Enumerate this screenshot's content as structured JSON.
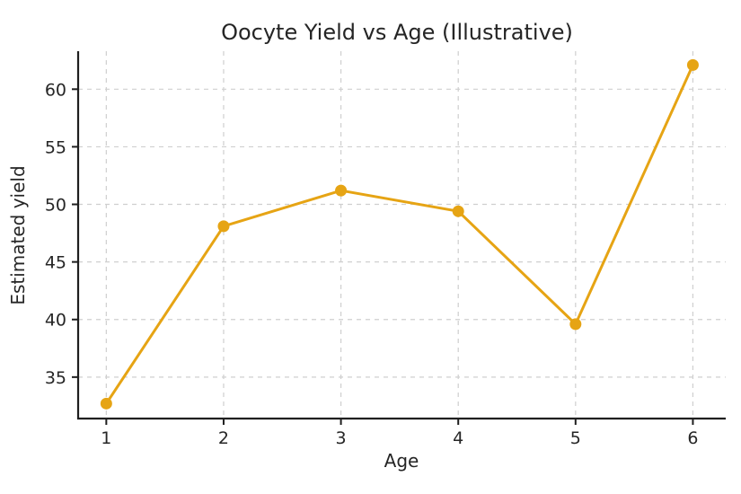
{
  "chart_data": {
    "type": "line",
    "title": "Oocyte Yield vs Age (Illustrative)",
    "xlabel": "Age",
    "ylabel": "Estimated yield",
    "x": [
      1,
      2,
      3,
      4,
      5,
      6
    ],
    "y": [
      32.7,
      48.1,
      51.2,
      49.4,
      39.6,
      62.1
    ],
    "series": [
      {
        "name": "Estimated yield",
        "x": [
          1,
          2,
          3,
          4,
          5,
          6
        ],
        "values": [
          32.7,
          48.1,
          51.2,
          49.4,
          39.6,
          62.1
        ]
      }
    ],
    "x_tick_labels": [
      "1",
      "2",
      "3",
      "4",
      "5",
      "6"
    ],
    "y_tick_labels": [
      "35",
      "40",
      "45",
      "50",
      "55",
      "60"
    ],
    "x_ticks": [
      1,
      2,
      3,
      4,
      5,
      6
    ],
    "y_ticks": [
      35,
      40,
      45,
      50,
      55,
      60
    ],
    "xlim": [
      0.76,
      6.28
    ],
    "ylim": [
      31.4,
      63.3
    ],
    "grid": true,
    "legend": "none",
    "colors": {
      "line": "#E6A414",
      "marker": "#E6A414",
      "grid": "#cfcfcf",
      "spine": "#1f1f1f",
      "text": "#252525",
      "background": "#ffffff"
    }
  }
}
